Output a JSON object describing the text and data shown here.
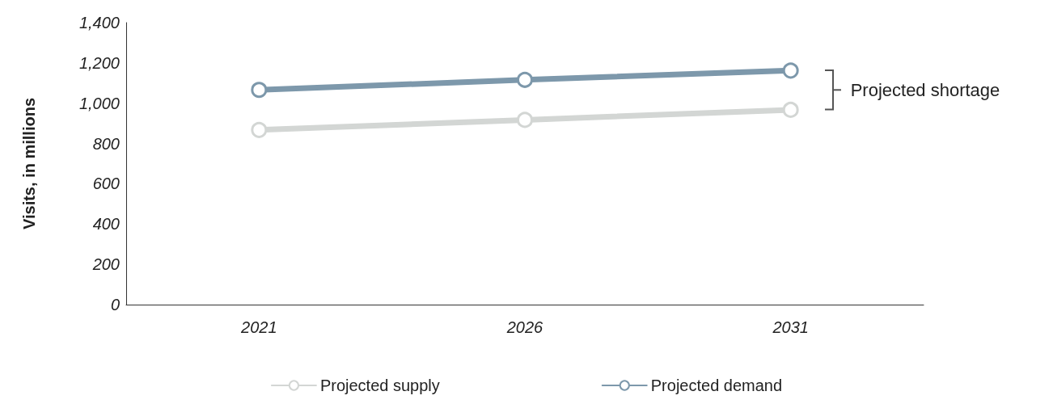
{
  "chart_data": {
    "type": "line",
    "ylabel": "Visits, in millions",
    "categories": [
      "2021",
      "2026",
      "2031"
    ],
    "series": [
      {
        "name": "Projected supply",
        "color": "#d3d6d4",
        "values": [
          867,
          917,
          967
        ]
      },
      {
        "name": "Projected demand",
        "color": "#7d98ab",
        "values": [
          1066,
          1116,
          1162
        ]
      }
    ],
    "ylim": [
      0,
      1400
    ],
    "yticks": [
      0,
      200,
      400,
      600,
      800,
      {
        "value": 1000,
        "label": "1,000"
      },
      {
        "value": 1200,
        "label": "1,200"
      },
      {
        "value": 1400,
        "label": "1,400"
      }
    ],
    "grid": false,
    "legend": "bottom",
    "marker": "circle",
    "line_style": "solid",
    "annotations": [
      "Projected shortage"
    ]
  }
}
